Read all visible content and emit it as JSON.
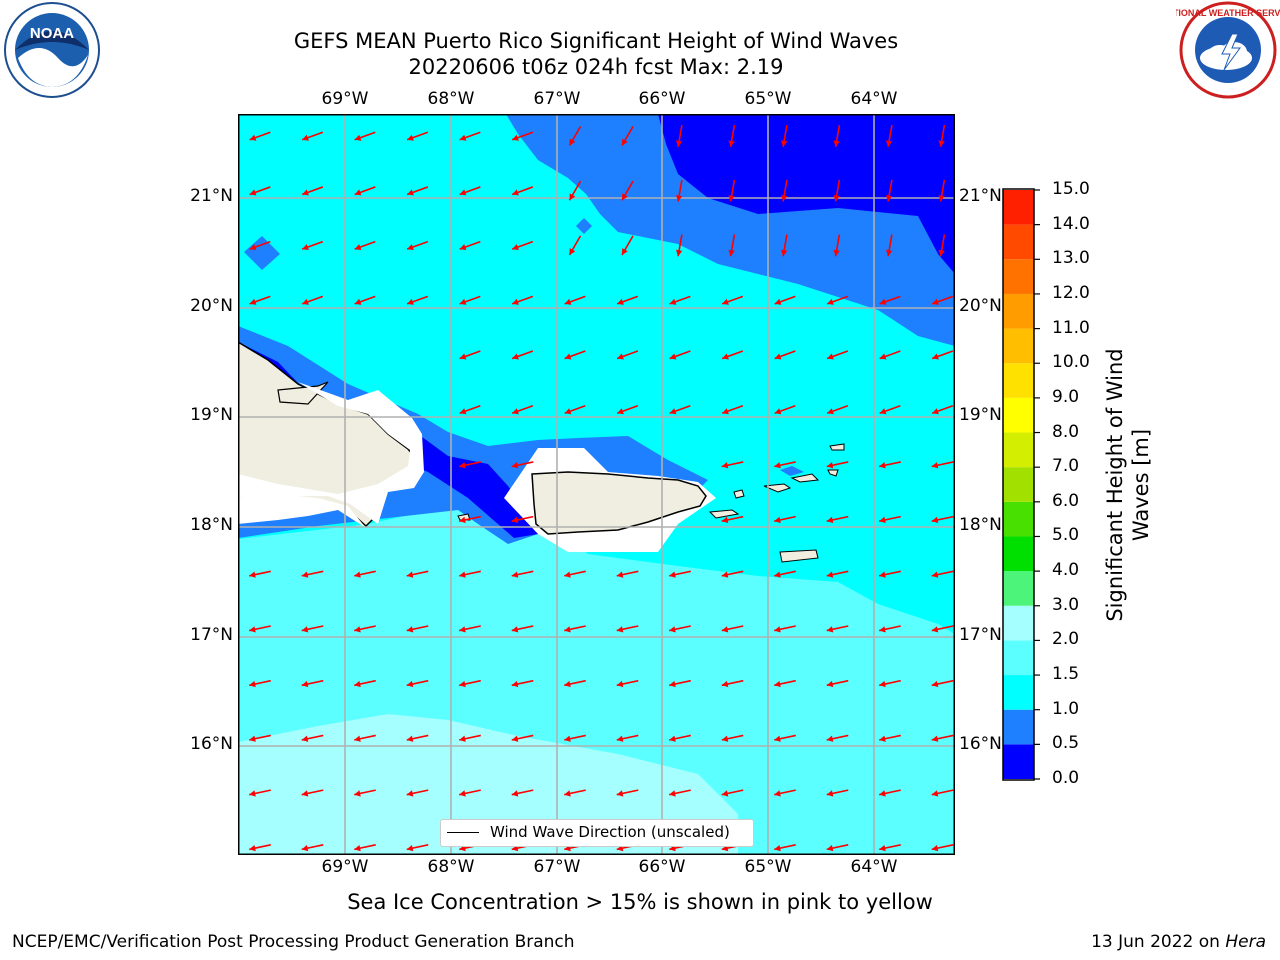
{
  "header": {
    "title_line1": "GEFS MEAN Puerto Rico Significant Height of Wind Waves",
    "title_line2": "20220606 t06z 024h fcst   Max: 2.19"
  },
  "logos": {
    "left": {
      "icon": "noaa-logo",
      "text": "NOAA"
    },
    "right": {
      "icon": "national-weather-service-logo",
      "text": "NATIONAL WEATHER SERVICE"
    }
  },
  "map": {
    "lon_labels": [
      "69°W",
      "68°W",
      "67°W",
      "66°W",
      "65°W",
      "64°W"
    ],
    "lat_labels": [
      "21°N",
      "20°N",
      "19°N",
      "18°N",
      "17°N",
      "16°N"
    ],
    "legend_label": "Wind Wave Direction (unscaled)",
    "wave_direction_note": "arrows point toward west-southwest in south, south-southwest in northeast",
    "land_color": "#efeee0",
    "arrow_color": "#ff0000",
    "grid_color": "#b0b0b0"
  },
  "colorbar": {
    "label": "Significant Height of Wind Waves [m]",
    "ticks": [
      "0.0",
      "0.5",
      "1.0",
      "1.5",
      "2.0",
      "3.0",
      "4.0",
      "5.0",
      "6.0",
      "7.0",
      "8.0",
      "9.0",
      "10.0",
      "11.0",
      "12.0",
      "13.0",
      "14.0",
      "15.0"
    ],
    "colors": [
      "#0000ff",
      "#1e7fff",
      "#00ffff",
      "#5cffff",
      "#a6ffff",
      "#4cf57a",
      "#00e000",
      "#48e000",
      "#a2e000",
      "#d3ee00",
      "#ffff00",
      "#ffe100",
      "#ffbf00",
      "#ff9c00",
      "#ff7200",
      "#ff4a00",
      "#ff2000"
    ]
  },
  "caption": "Sea Ice Concentration > 15% is shown in pink to yellow",
  "footer": {
    "left": "NCEP/EMC/Verification Post Processing Product Generation Branch",
    "right_date": "13 Jun 2022 on ",
    "right_host": "Hera"
  }
}
